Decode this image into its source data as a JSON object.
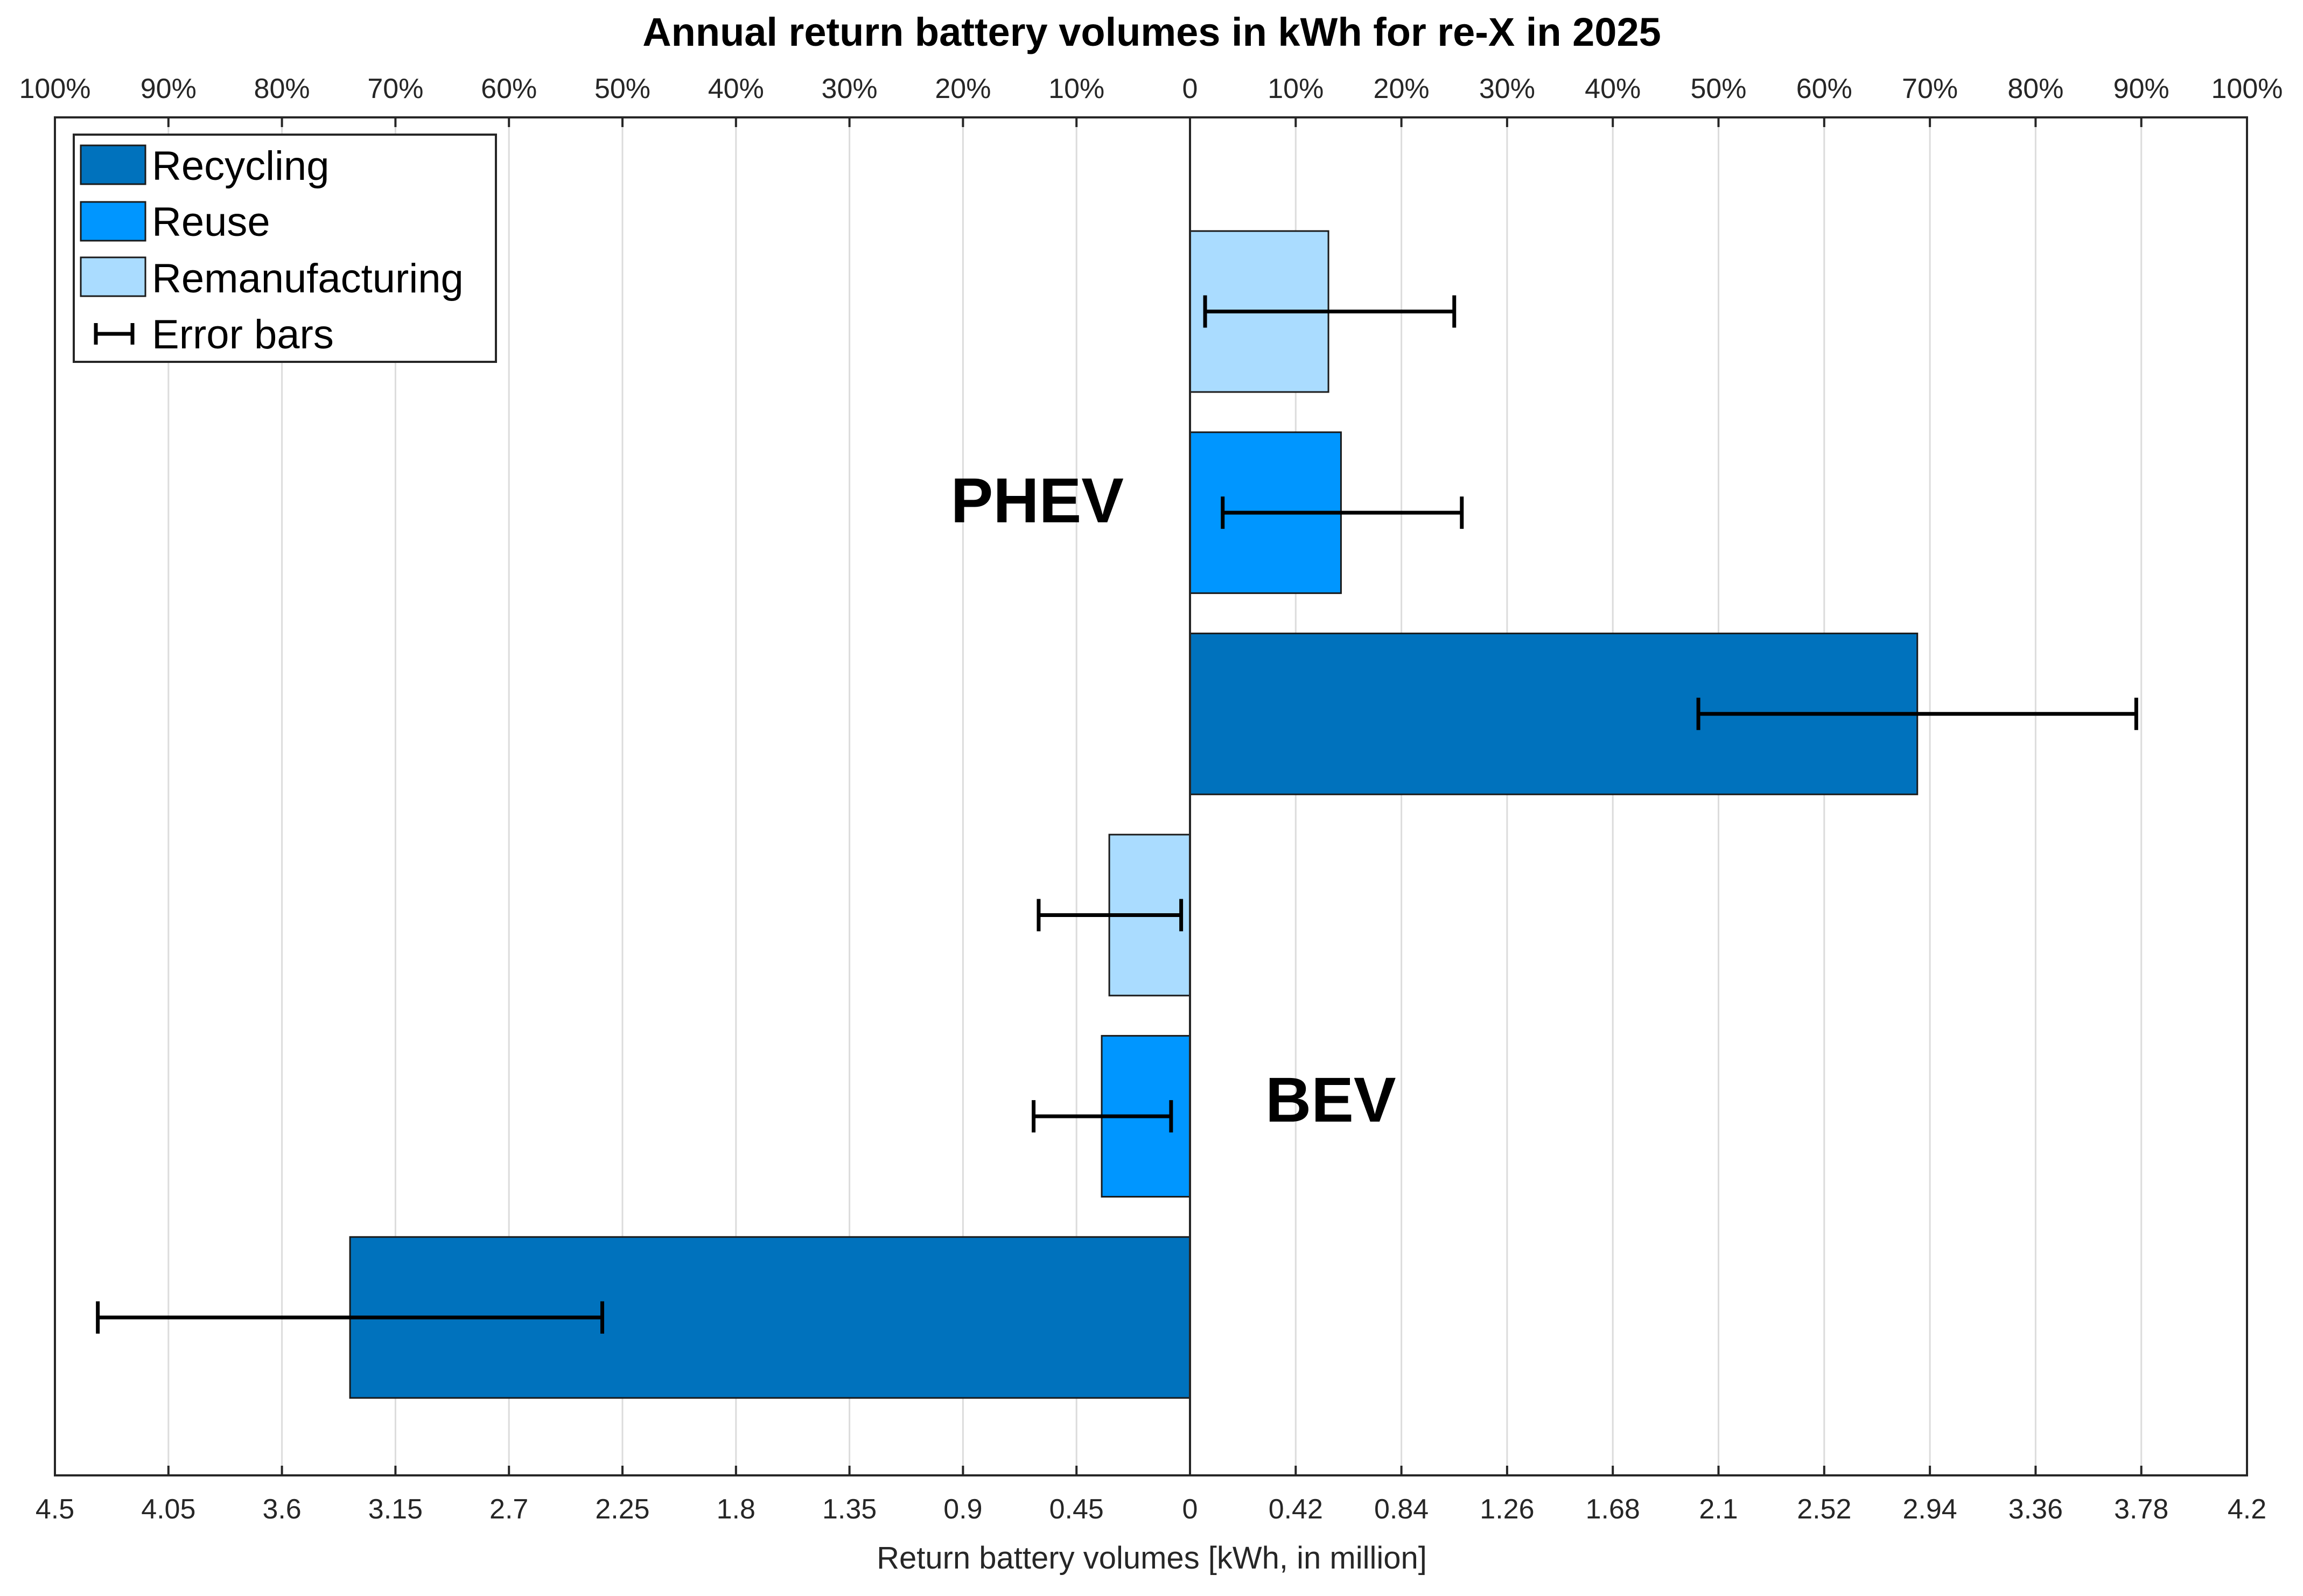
{
  "chart_data": {
    "type": "bar",
    "orientation": "horizontal",
    "title": "Annual return battery volumes in kWh for re-X in 2025",
    "xlabel": "Return battery volumes [kWh, in million]",
    "groups": [
      {
        "name": "PHEV",
        "direction": "right",
        "xlim": [
          0,
          4.2
        ],
        "bars": [
          {
            "series": "Remanufacturing",
            "value": 0.55,
            "err_low": 0.06,
            "err_high": 1.05
          },
          {
            "series": "Reuse",
            "value": 0.6,
            "err_low": 0.13,
            "err_high": 1.08
          },
          {
            "series": "Recycling",
            "value": 2.89,
            "err_low": 2.02,
            "err_high": 3.76
          }
        ]
      },
      {
        "name": "BEV",
        "direction": "left",
        "xlim": [
          0,
          4.5
        ],
        "bars": [
          {
            "series": "Remanufacturing",
            "value": 0.32,
            "err_low": 0.035,
            "err_high": 0.6
          },
          {
            "series": "Reuse",
            "value": 0.35,
            "err_low": 0.075,
            "err_high": 0.62
          },
          {
            "series": "Recycling",
            "value": 3.33,
            "err_low": 2.33,
            "err_high": 4.33
          }
        ]
      }
    ],
    "bottom_ticks_left": [
      "4.5",
      "4.05",
      "3.6",
      "3.15",
      "2.7",
      "2.25",
      "1.8",
      "1.35",
      "0.9",
      "0.45",
      "0"
    ],
    "bottom_ticks_right": [
      "0.42",
      "0.84",
      "1.26",
      "1.68",
      "2.1",
      "2.52",
      "2.94",
      "3.36",
      "3.78",
      "4.2"
    ],
    "top_ticks_left": [
      "100%",
      "90%",
      "80%",
      "70%",
      "60%",
      "50%",
      "40%",
      "30%",
      "20%",
      "10%",
      "0"
    ],
    "top_ticks_right": [
      "10%",
      "20%",
      "30%",
      "40%",
      "50%",
      "60%",
      "70%",
      "80%",
      "90%",
      "100%"
    ],
    "legend": {
      "position": "top-left",
      "entries": [
        {
          "label": "Recycling",
          "color": "#0072BD"
        },
        {
          "label": "Reuse",
          "color": "#0096FF"
        },
        {
          "label": "Remanufacturing",
          "color": "#AADCFF"
        },
        {
          "label": "Error bars",
          "type": "errorbar"
        }
      ]
    },
    "colors": {
      "Recycling": "#0072BD",
      "Reuse": "#0096FF",
      "Remanufacturing": "#AADCFF"
    },
    "grid": true
  }
}
